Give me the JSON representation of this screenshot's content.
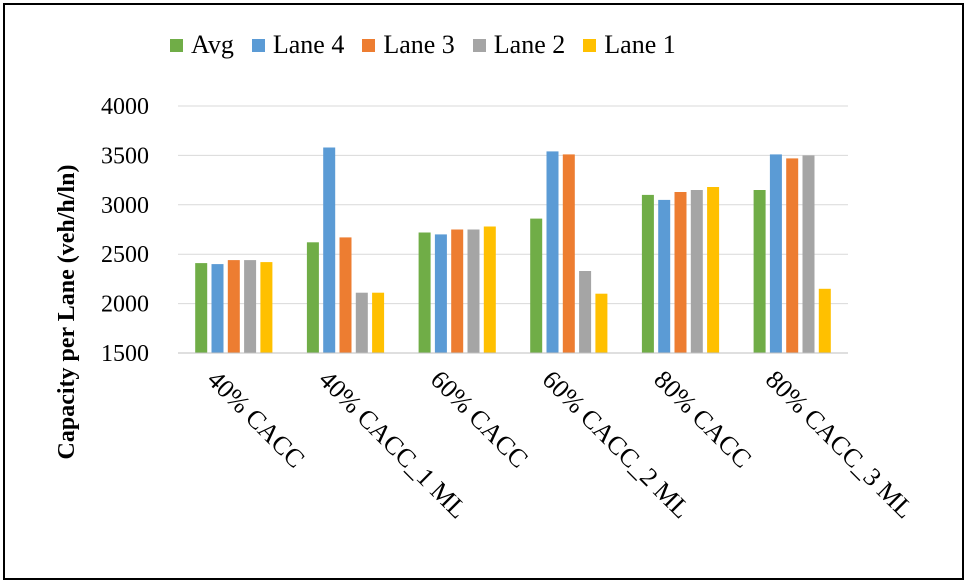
{
  "chart_data": {
    "type": "bar",
    "title": "",
    "xlabel": "",
    "ylabel": "Capacity per Lane (veh/h/ln)",
    "ylim": [
      1500,
      4000
    ],
    "yticks": [
      1500,
      2000,
      2500,
      3000,
      3500,
      4000
    ],
    "grid": true,
    "legend_position": "top",
    "categories": [
      "40% CACC",
      "40% CACC_1 ML",
      "60% CACC",
      "60% CACC_2 ML",
      "80% CACC",
      "80% CACC_3 ML"
    ],
    "series": [
      {
        "name": "Avg",
        "color": "#70ad47",
        "values": [
          2410,
          2620,
          2720,
          2860,
          3100,
          3150
        ]
      },
      {
        "name": "Lane 4",
        "color": "#5b9bd5",
        "values": [
          2400,
          3580,
          2700,
          3540,
          3050,
          3510
        ]
      },
      {
        "name": "Lane 3",
        "color": "#ed7d31",
        "values": [
          2440,
          2670,
          2750,
          3510,
          3130,
          3470
        ]
      },
      {
        "name": "Lane 2",
        "color": "#a5a5a5",
        "values": [
          2440,
          2110,
          2750,
          2330,
          3150,
          3500
        ]
      },
      {
        "name": "Lane 1",
        "color": "#ffc000",
        "values": [
          2420,
          2110,
          2780,
          2100,
          3180,
          2150
        ]
      }
    ]
  }
}
